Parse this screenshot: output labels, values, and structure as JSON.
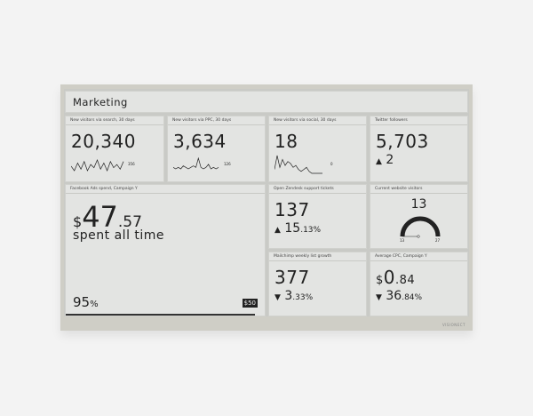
{
  "title": "Marketing",
  "tiles": {
    "search": {
      "label": "New visitors via search, 30 days",
      "value": "20,340",
      "spark_last": "356",
      "spark": [
        5,
        2,
        7,
        3,
        8,
        2,
        6,
        4,
        9,
        3,
        7,
        2,
        8,
        4,
        6,
        3,
        8
      ]
    },
    "ppc": {
      "label": "New visitors via PPC, 30 days",
      "value": "3,634",
      "spark_last": "126",
      "spark": [
        3,
        2,
        3,
        2,
        4,
        3,
        2,
        3,
        4,
        3,
        9,
        3,
        2,
        3,
        5,
        2,
        3,
        2,
        3
      ]
    },
    "social": {
      "label": "New visitors via social, 30 days",
      "value": "18",
      "spark_last": "0",
      "spark": [
        2,
        9,
        3,
        7,
        4,
        6,
        5,
        3,
        4,
        2,
        1,
        2,
        3,
        1,
        0,
        0,
        0,
        0,
        0
      ]
    },
    "twitter": {
      "label": "Twitter followers",
      "value": "5,703",
      "change_arrow": "▲",
      "change": "2"
    },
    "facebook": {
      "label": "Facebook Ads spend, Campaign Y",
      "currency": "$",
      "value_int": "47",
      "value_dec": ".57",
      "caption": "spent all time",
      "percent": "95",
      "percent_sign": "%",
      "budget": "$50",
      "progress": 0.95
    },
    "zendesk": {
      "label": "Open Zendesk support tickets",
      "value": "137",
      "change_arrow": "▲",
      "change_int": "15",
      "change_dec": ".13%"
    },
    "visitors": {
      "label": "Current website visitors",
      "value": "13",
      "min": "13",
      "max": "27",
      "level": 0
    },
    "mailchimp": {
      "label": "Mailchimp weekly list growth",
      "value": "377",
      "change_arrow": "▼",
      "change_int": "3",
      "change_dec": ".33%"
    },
    "cpc": {
      "label": "Average CPC, Campaign Y",
      "currency": "$",
      "value_int": "0",
      "value_dec": ".84",
      "change_arrow": "▼",
      "change_int": "36",
      "change_dec": ".84%"
    }
  },
  "footer": "VISIONECT"
}
